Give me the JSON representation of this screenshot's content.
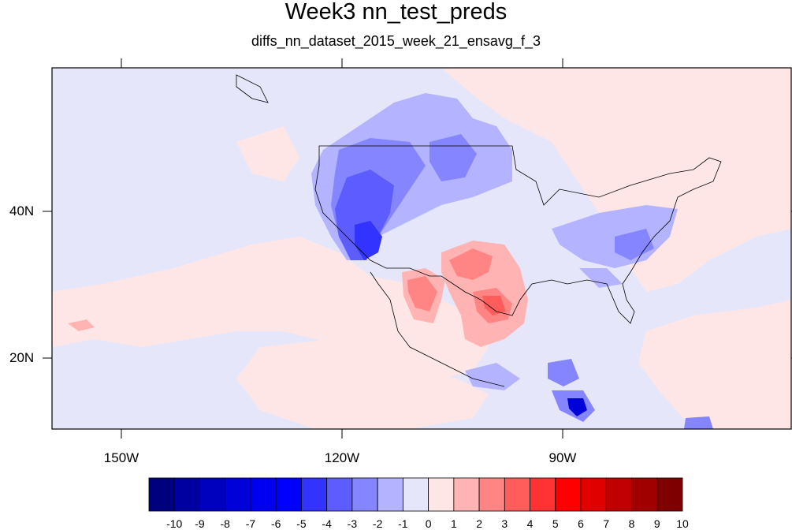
{
  "title": "Week3 nn_test_preds",
  "subtitle": "diffs_nn_dataset_2015_week_21_ensavg_f_3",
  "lon_labels": [
    "150W",
    "120W",
    "90W"
  ],
  "lat_labels": [
    "40N",
    "20N"
  ],
  "colorbar": {
    "labels": [
      "-10",
      "-9",
      "-8",
      "-7",
      "-6",
      "-5",
      "-4",
      "-3",
      "-2",
      "-1",
      "0",
      "1",
      "2",
      "3",
      "4",
      "5",
      "6",
      "7",
      "8",
      "9",
      "10"
    ],
    "colors": [
      "#00007f",
      "#0000a0",
      "#0000bf",
      "#0000d8",
      "#0000f0",
      "#0000ff",
      "#3333ff",
      "#5c5cff",
      "#8585ff",
      "#b3b3ff",
      "#e6e6fa",
      "#ffe6e6",
      "#ffb3b3",
      "#ff8585",
      "#ff5c5c",
      "#ff3333",
      "#ff0000",
      "#e00000",
      "#c00000",
      "#a00000",
      "#7f0000"
    ]
  },
  "map_data": {
    "type": "filled contour map",
    "lon_range": [
      "160W",
      "60W"
    ],
    "lat_range": [
      "11N",
      "59N"
    ]
  }
}
